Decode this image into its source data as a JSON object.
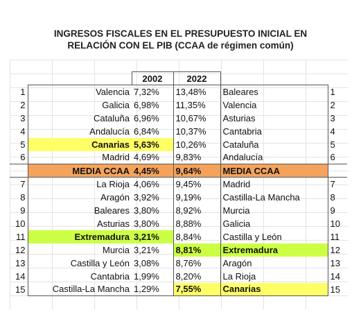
{
  "title_line1": "INGRESOS FISCALES EN EL PRESUPUESTO INICIAL EN",
  "title_line2": "RELACIÓN CON EL PIB (CCAA de régimen común)",
  "header": {
    "y2002": "2002",
    "y2022": "2022"
  },
  "media": {
    "label": "MEDIA CCAA",
    "v2002": "4,45%",
    "v2022": "9,64%",
    "label_r": "MEDIA CCAA"
  },
  "rows": [
    {
      "n": "1",
      "name": "Valencia",
      "v2002": "7,32%",
      "v2022": "13,48%",
      "name_r": "Baleares",
      "n_r": "1"
    },
    {
      "n": "2",
      "name": "Galicia",
      "v2002": "6,98%",
      "v2022": "11,35%",
      "name_r": "Valencia",
      "n_r": "2"
    },
    {
      "n": "3",
      "name": "Cataluña",
      "v2002": "6,96%",
      "v2022": "10,67%",
      "name_r": "Asturias",
      "n_r": "3"
    },
    {
      "n": "4",
      "name": "Andalucía",
      "v2002": "6,84%",
      "v2022": "10,37%",
      "name_r": "Cantabria",
      "n_r": "4"
    },
    {
      "n": "5",
      "name": "Canarias",
      "v2002": "5,63%",
      "v2022": "10,26%",
      "name_r": "Cataluña",
      "n_r": "5"
    },
    {
      "n": "6",
      "name": "Madrid",
      "v2002": "4,69%",
      "v2022": "9,83%",
      "name_r": "Andalucía",
      "n_r": "6"
    },
    {
      "n": "7",
      "name": "La Rioja",
      "v2002": "4,06%",
      "v2022": "9,45%",
      "name_r": "Madrid",
      "n_r": "7"
    },
    {
      "n": "8",
      "name": "Aragón",
      "v2002": "3,92%",
      "v2022": "9,19%",
      "name_r": "Castilla-La Mancha",
      "n_r": "8"
    },
    {
      "n": "9",
      "name": "Baleares",
      "v2002": "3,80%",
      "v2022": "8,92%",
      "name_r": "Murcia",
      "n_r": "9"
    },
    {
      "n": "10",
      "name": "Asturias",
      "v2002": "3,80%",
      "v2022": "8,88%",
      "name_r": "Galicia",
      "n_r": "10"
    },
    {
      "n": "11",
      "name": "Extremadura",
      "v2002": "3,21%",
      "v2022": "8,84%",
      "name_r": "Castilla y León",
      "n_r": "11"
    },
    {
      "n": "12",
      "name": "Murcia",
      "v2002": "3,21%",
      "v2022": "8,81%",
      "name_r": "Extremadura",
      "n_r": "12"
    },
    {
      "n": "13",
      "name": "Castilla y León",
      "v2002": "3,08%",
      "v2022": "8,76%",
      "name_r": "Aragón",
      "n_r": "13"
    },
    {
      "n": "14",
      "name": "Cantabria",
      "v2002": "1,99%",
      "v2022": "8,20%",
      "name_r": "La Rioja",
      "n_r": "14"
    },
    {
      "n": "15",
      "name": "Castilla-La Mancha",
      "v2002": "1,29%",
      "v2022": "7,55%",
      "name_r": "Canarias",
      "n_r": "15"
    }
  ]
}
